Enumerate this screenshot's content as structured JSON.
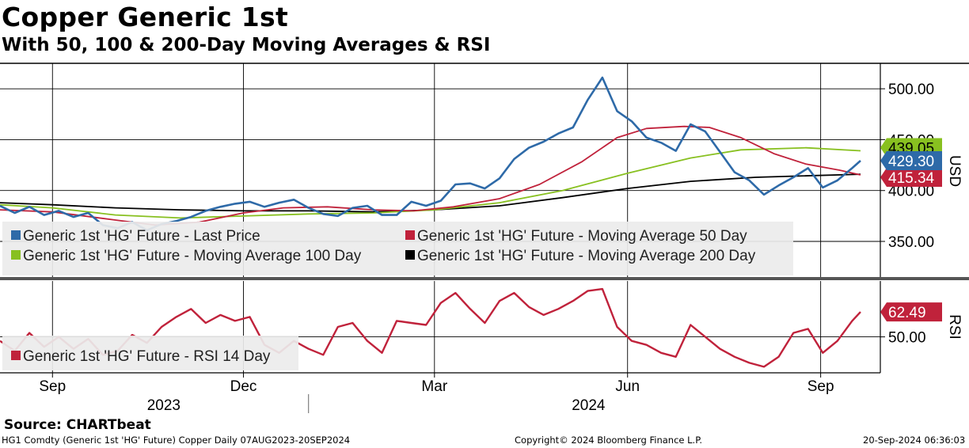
{
  "header": {
    "title": "Copper Generic 1st",
    "subtitle": "With 50, 100 & 200-Day Moving Averages & RSI"
  },
  "footer": {
    "source": "Source: CHARTbeat",
    "ticker": "HG1 Comdty (Generic 1st 'HG' Future) Copper  Daily 07AUG2023-20SEP2024",
    "copyright": "Copyright© 2024 Bloomberg Finance L.P.",
    "timestamp": "20-Sep-2024 06:36:03"
  },
  "colors": {
    "price": "#2e6aa8",
    "ma50": "#c0223b",
    "ma100": "#88c020",
    "ma200": "#000000",
    "rsi": "#c0223b"
  },
  "chart_data": [
    {
      "type": "line",
      "panel": "price",
      "ylabel": "USD",
      "ylim": [
        315,
        525
      ],
      "yticks": [
        "500.00",
        "450.00",
        "400.00",
        "350.00"
      ],
      "x_tick_labels": [
        "Sep",
        "Dec",
        "Mar",
        "Jun",
        "Sep"
      ],
      "year_labels": [
        "2023",
        "2024"
      ],
      "legend": [
        "Generic 1st 'HG' Future - Last Price",
        "Generic 1st 'HG' Future - Moving Average 50 Day",
        "Generic 1st 'HG' Future - Moving Average 100 Day",
        "Generic 1st 'HG' Future - Moving Average 200 Day"
      ],
      "end_labels": {
        "ma100": "439.05",
        "last": "429.30",
        "ma50": "415.34"
      },
      "series": [
        {
          "name": "Generic 1st 'HG' Future - Last Price",
          "key": "price",
          "points": [
            [
              "2023-08-07",
              385
            ],
            [
              "2023-08-14",
              378
            ],
            [
              "2023-08-21",
              384
            ],
            [
              "2023-08-28",
              376
            ],
            [
              "2023-09-04",
              380
            ],
            [
              "2023-09-11",
              374
            ],
            [
              "2023-09-18",
              378
            ],
            [
              "2023-09-25",
              366
            ],
            [
              "2023-10-02",
              363
            ],
            [
              "2023-10-09",
              369
            ],
            [
              "2023-10-16",
              361
            ],
            [
              "2023-10-23",
              367
            ],
            [
              "2023-10-30",
              370
            ],
            [
              "2023-11-06",
              374
            ],
            [
              "2023-11-13",
              380
            ],
            [
              "2023-11-20",
              384
            ],
            [
              "2023-11-27",
              387
            ],
            [
              "2023-12-04",
              389
            ],
            [
              "2023-12-11",
              384
            ],
            [
              "2023-12-18",
              388
            ],
            [
              "2023-12-25",
              391
            ],
            [
              "2024-01-01",
              383
            ],
            [
              "2024-01-08",
              377
            ],
            [
              "2024-01-15",
              375
            ],
            [
              "2024-01-22",
              383
            ],
            [
              "2024-01-29",
              385
            ],
            [
              "2024-02-05",
              376
            ],
            [
              "2024-02-12",
              376
            ],
            [
              "2024-02-19",
              389
            ],
            [
              "2024-02-26",
              385
            ],
            [
              "2024-03-04",
              390
            ],
            [
              "2024-03-11",
              406
            ],
            [
              "2024-03-18",
              407
            ],
            [
              "2024-03-25",
              402
            ],
            [
              "2024-04-01",
              412
            ],
            [
              "2024-04-08",
              431
            ],
            [
              "2024-04-15",
              442
            ],
            [
              "2024-04-22",
              448
            ],
            [
              "2024-04-29",
              456
            ],
            [
              "2024-05-06",
              462
            ],
            [
              "2024-05-13",
              489
            ],
            [
              "2024-05-20",
              511
            ],
            [
              "2024-05-27",
              478
            ],
            [
              "2024-06-03",
              468
            ],
            [
              "2024-06-10",
              452
            ],
            [
              "2024-06-17",
              447
            ],
            [
              "2024-06-24",
              439
            ],
            [
              "2024-07-01",
              465
            ],
            [
              "2024-07-08",
              458
            ],
            [
              "2024-07-15",
              438
            ],
            [
              "2024-07-22",
              418
            ],
            [
              "2024-07-29",
              410
            ],
            [
              "2024-08-05",
              396
            ],
            [
              "2024-08-12",
              405
            ],
            [
              "2024-08-19",
              413
            ],
            [
              "2024-08-26",
              422
            ],
            [
              "2024-09-02",
              403
            ],
            [
              "2024-09-09",
              410
            ],
            [
              "2024-09-16",
              422
            ],
            [
              "2024-09-20",
              429.3
            ]
          ]
        },
        {
          "name": "Generic 1st 'HG' Future - Moving Average 50 Day",
          "key": "ma50",
          "points": [
            [
              "2023-08-07",
              381
            ],
            [
              "2023-09-01",
              379
            ],
            [
              "2023-10-01",
              371
            ],
            [
              "2023-10-20",
              366
            ],
            [
              "2023-11-10",
              369
            ],
            [
              "2023-12-01",
              378
            ],
            [
              "2023-12-20",
              383
            ],
            [
              "2024-01-10",
              384
            ],
            [
              "2024-02-01",
              381
            ],
            [
              "2024-02-20",
              380
            ],
            [
              "2024-03-10",
              384
            ],
            [
              "2024-04-01",
              392
            ],
            [
              "2024-04-20",
              406
            ],
            [
              "2024-05-10",
              428
            ],
            [
              "2024-05-27",
              452
            ],
            [
              "2024-06-10",
              461
            ],
            [
              "2024-06-28",
              463
            ],
            [
              "2024-07-10",
              462
            ],
            [
              "2024-07-25",
              452
            ],
            [
              "2024-08-10",
              436
            ],
            [
              "2024-08-25",
              426
            ],
            [
              "2024-09-10",
              420
            ],
            [
              "2024-09-20",
              415.34
            ]
          ]
        },
        {
          "name": "Generic 1st 'HG' Future - Moving Average 100 Day",
          "key": "ma100",
          "points": [
            [
              "2023-08-07",
              386
            ],
            [
              "2023-09-01",
              383
            ],
            [
              "2023-10-01",
              376
            ],
            [
              "2023-11-01",
              373
            ],
            [
              "2023-12-01",
              375
            ],
            [
              "2024-01-01",
              377
            ],
            [
              "2024-02-01",
              378
            ],
            [
              "2024-03-01",
              381
            ],
            [
              "2024-04-01",
              388
            ],
            [
              "2024-05-01",
              400
            ],
            [
              "2024-06-01",
              417
            ],
            [
              "2024-07-01",
              432
            ],
            [
              "2024-07-25",
              440
            ],
            [
              "2024-08-25",
              442
            ],
            [
              "2024-09-20",
              439.05
            ]
          ]
        },
        {
          "name": "Generic 1st 'HG' Future - Moving Average 200 Day",
          "key": "ma200",
          "points": [
            [
              "2023-08-07",
              388
            ],
            [
              "2023-09-01",
              386
            ],
            [
              "2023-10-01",
              383
            ],
            [
              "2023-11-01",
              381
            ],
            [
              "2023-12-01",
              380
            ],
            [
              "2024-01-01",
              380
            ],
            [
              "2024-02-01",
              379
            ],
            [
              "2024-03-01",
              381
            ],
            [
              "2024-04-01",
              385
            ],
            [
              "2024-05-01",
              393
            ],
            [
              "2024-06-01",
              402
            ],
            [
              "2024-07-01",
              409
            ],
            [
              "2024-08-01",
              413
            ],
            [
              "2024-09-20",
              416
            ]
          ]
        }
      ]
    },
    {
      "type": "line",
      "panel": "rsi",
      "ylabel": "RSI",
      "ylim": [
        32,
        78
      ],
      "yticks": [
        "50.00"
      ],
      "legend": [
        "Generic 1st 'HG' Future - RSI 14 Day"
      ],
      "end_labels": {
        "rsi": "62.49"
      },
      "series": [
        {
          "name": "Generic 1st 'HG' Future - RSI 14 Day",
          "key": "rsi",
          "points": [
            [
              "2023-08-07",
              48
            ],
            [
              "2023-08-14",
              43
            ],
            [
              "2023-08-21",
              52
            ],
            [
              "2023-08-28",
              45
            ],
            [
              "2023-09-04",
              50
            ],
            [
              "2023-09-11",
              44
            ],
            [
              "2023-09-18",
              49
            ],
            [
              "2023-09-25",
              41
            ],
            [
              "2023-10-02",
              43
            ],
            [
              "2023-10-09",
              51
            ],
            [
              "2023-10-16",
              47
            ],
            [
              "2023-10-23",
              55
            ],
            [
              "2023-10-30",
              60
            ],
            [
              "2023-11-06",
              64
            ],
            [
              "2023-11-13",
              57
            ],
            [
              "2023-11-20",
              61
            ],
            [
              "2023-11-27",
              58
            ],
            [
              "2023-12-04",
              60
            ],
            [
              "2023-12-11",
              46
            ],
            [
              "2023-12-18",
              42
            ],
            [
              "2023-12-25",
              48
            ],
            [
              "2024-01-01",
              44
            ],
            [
              "2024-01-08",
              41
            ],
            [
              "2024-01-15",
              55
            ],
            [
              "2024-01-22",
              57
            ],
            [
              "2024-01-29",
              48
            ],
            [
              "2024-02-05",
              42
            ],
            [
              "2024-02-12",
              58
            ],
            [
              "2024-02-19",
              57
            ],
            [
              "2024-02-26",
              56
            ],
            [
              "2024-03-04",
              67
            ],
            [
              "2024-03-11",
              72
            ],
            [
              "2024-03-18",
              64
            ],
            [
              "2024-03-25",
              57
            ],
            [
              "2024-04-01",
              68
            ],
            [
              "2024-04-08",
              72
            ],
            [
              "2024-04-15",
              65
            ],
            [
              "2024-04-22",
              61
            ],
            [
              "2024-04-29",
              64
            ],
            [
              "2024-05-06",
              68
            ],
            [
              "2024-05-13",
              73
            ],
            [
              "2024-05-20",
              74
            ],
            [
              "2024-05-27",
              55
            ],
            [
              "2024-06-03",
              48
            ],
            [
              "2024-06-10",
              46
            ],
            [
              "2024-06-17",
              42
            ],
            [
              "2024-06-24",
              40
            ],
            [
              "2024-07-01",
              56
            ],
            [
              "2024-07-08",
              50
            ],
            [
              "2024-07-15",
              44
            ],
            [
              "2024-07-22",
              40
            ],
            [
              "2024-07-29",
              37
            ],
            [
              "2024-08-05",
              35
            ],
            [
              "2024-08-12",
              40
            ],
            [
              "2024-08-19",
              52
            ],
            [
              "2024-08-26",
              54
            ],
            [
              "2024-09-02",
              42
            ],
            [
              "2024-09-09",
              48
            ],
            [
              "2024-09-16",
              58
            ],
            [
              "2024-09-20",
              62.49
            ]
          ]
        }
      ]
    }
  ]
}
